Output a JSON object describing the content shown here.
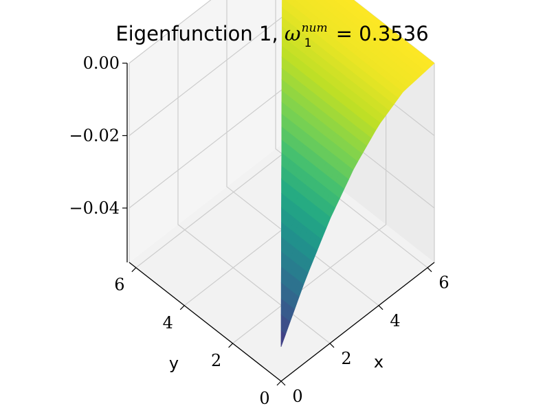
{
  "chart_data": {
    "type": "surface3d",
    "title": {
      "prefix": "Eigenfunction 1, ",
      "symbol": "ω",
      "subscript": "1",
      "superscript": "num",
      "suffix": " = 0.3536"
    },
    "xlabel": "x",
    "ylabel": "y",
    "zlabel": "",
    "xlim": [
      0,
      6.28
    ],
    "ylim": [
      0,
      6.28
    ],
    "zlim": [
      -0.055,
      0.0
    ],
    "x_ticks": [
      0,
      2,
      4,
      6
    ],
    "y_ticks": [
      0,
      2,
      4,
      6
    ],
    "z_ticks": [
      0.0,
      -0.02,
      -0.04
    ],
    "x_tick_labels": [
      "0",
      "2",
      "4",
      "6"
    ],
    "y_tick_labels": [
      "0",
      "2",
      "4",
      "6"
    ],
    "z_tick_labels": [
      "0.00",
      "−0.02",
      "−0.04"
    ],
    "colormap": "viridis",
    "surface_description": "triangular domain 0 <= x <= 2pi, 0 <= y <= x; z = -0.0455 * ((2pi - x)/(2pi))^2 approx; z = 0 along the x = 2pi edge",
    "surface_samples": {
      "x": [
        0.0,
        1.0,
        2.0,
        3.0,
        4.0,
        5.0,
        6.28
      ],
      "z_at_y0": [
        -0.0455,
        -0.0321,
        -0.0207,
        -0.0117,
        -0.0052,
        -0.0012,
        0.0
      ]
    },
    "grid": true,
    "view": {
      "elev": 48,
      "azim": 45
    }
  }
}
